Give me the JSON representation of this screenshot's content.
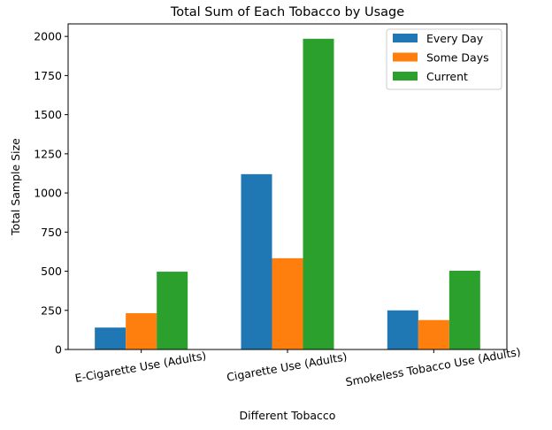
{
  "chart_data": {
    "type": "bar",
    "title": "Total Sum of Each Tobacco by Usage",
    "xlabel": "Different Tobacco",
    "ylabel": "Total Sample Size",
    "categories": [
      "E-Cigarette Use (Adults)",
      "Cigarette Use (Adults)",
      "Smokeless Tobacco Use (Adults)"
    ],
    "series": [
      {
        "name": "Every Day",
        "color": "#1f77b4",
        "values": [
          140,
          1120,
          250
        ]
      },
      {
        "name": "Some Days",
        "color": "#ff7f0e",
        "values": [
          232,
          583,
          188
        ]
      },
      {
        "name": "Current",
        "color": "#2ca02c",
        "values": [
          497,
          1985,
          503
        ]
      }
    ],
    "ylim": [
      0,
      2080
    ],
    "yticks": [
      0,
      250,
      500,
      750,
      1000,
      1250,
      1500,
      1750,
      2000
    ],
    "grid": false,
    "legend_position": "top-right"
  }
}
